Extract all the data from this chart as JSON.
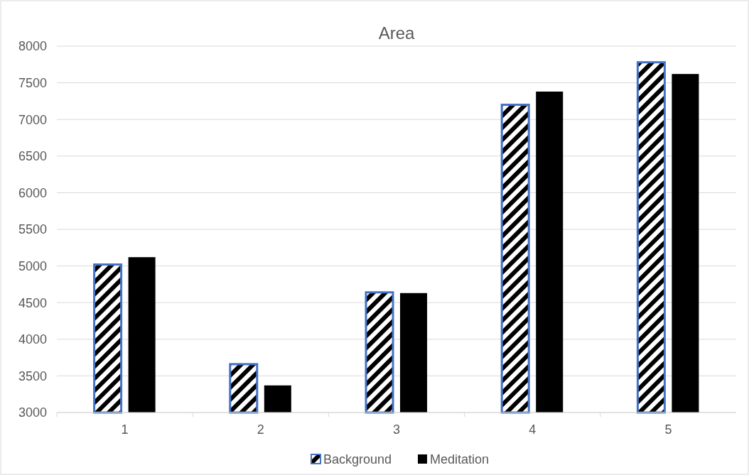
{
  "chart_data": {
    "type": "bar",
    "title": "Area",
    "categories": [
      "1",
      "2",
      "3",
      "4",
      "5"
    ],
    "series": [
      {
        "name": "Background",
        "color": "#4472c4",
        "values": [
          5020,
          3660,
          4640,
          7200,
          7780
        ]
      },
      {
        "name": "Meditation",
        "color": "#000000",
        "values": [
          5120,
          3370,
          4630,
          7380,
          7620
        ]
      }
    ],
    "ylim": [
      3000,
      8000
    ],
    "yticks": [
      3000,
      3500,
      4000,
      4500,
      5000,
      5500,
      6000,
      6500,
      7000,
      7500,
      8000
    ],
    "grid": "y",
    "legend": "bottom"
  }
}
